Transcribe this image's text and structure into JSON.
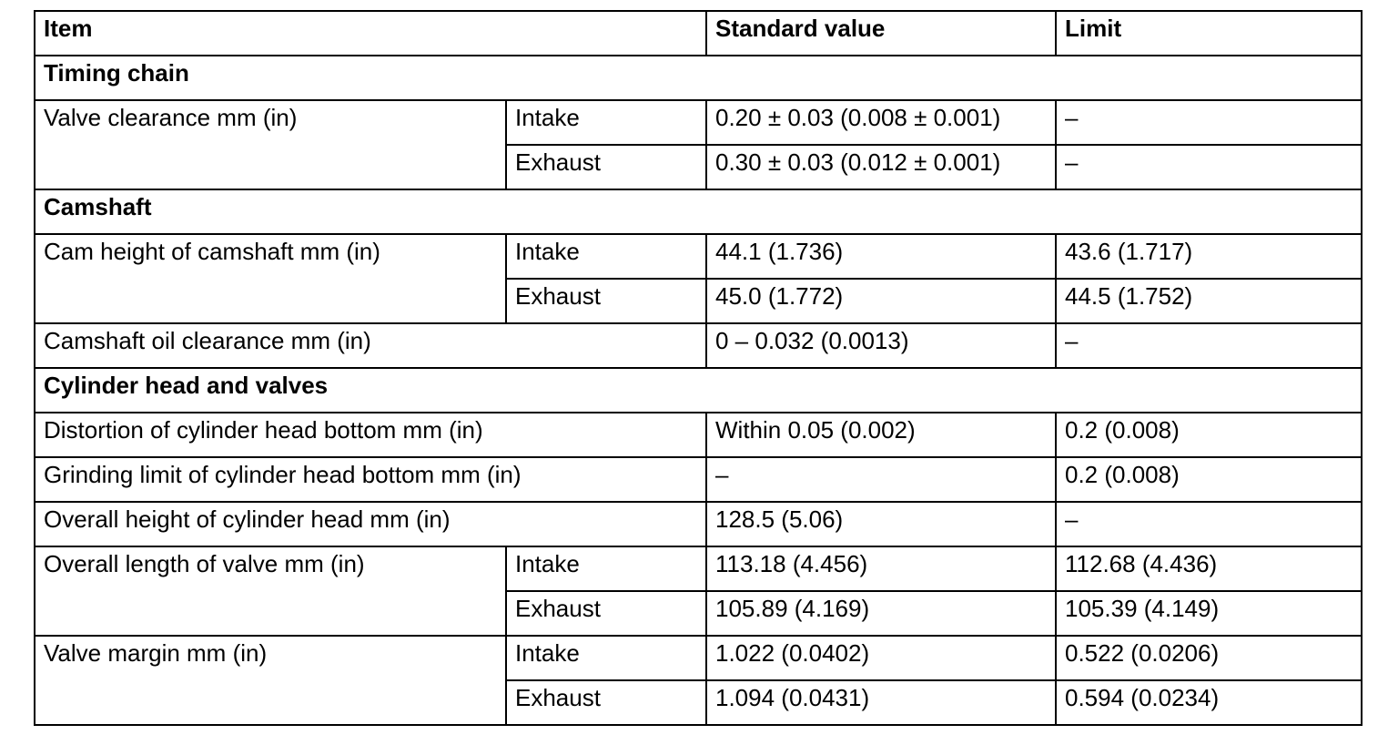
{
  "table": {
    "header": [
      "Item",
      "Standard value",
      "Limit"
    ],
    "sections": [
      {
        "title": "Timing chain",
        "items": [
          {
            "label": "Valve clearance mm (in)",
            "variants": [
              {
                "name": "Intake",
                "standard": "0.20 ± 0.03 (0.008 ± 0.001)",
                "limit": "–"
              },
              {
                "name": "Exhaust",
                "standard": "0.30 ± 0.03 (0.012 ± 0.001)",
                "limit": "–"
              }
            ]
          }
        ]
      },
      {
        "title": "Camshaft",
        "items": [
          {
            "label": "Cam height of camshaft mm (in)",
            "variants": [
              {
                "name": "Intake",
                "standard": "44.1 (1.736)",
                "limit": "43.6 (1.717)"
              },
              {
                "name": "Exhaust",
                "standard": "45.0 (1.772)",
                "limit": "44.5 (1.752)"
              }
            ]
          },
          {
            "label": "Camshaft oil clearance mm (in)",
            "standard": "0 – 0.032 (0.0013)",
            "limit": "–"
          }
        ]
      },
      {
        "title": "Cylinder head and valves",
        "items": [
          {
            "label": "Distortion of cylinder head bottom mm (in)",
            "standard": "Within 0.05 (0.002)",
            "limit": "0.2 (0.008)"
          },
          {
            "label": "Grinding limit of cylinder head bottom mm (in)",
            "standard": "–",
            "limit": "0.2 (0.008)"
          },
          {
            "label": "Overall height of cylinder head mm (in)",
            "standard": "128.5 (5.06)",
            "limit": "–"
          },
          {
            "label": "Overall length of valve mm (in)",
            "variants": [
              {
                "name": "Intake",
                "standard": "113.18 (4.456)",
                "limit": "112.68 (4.436)"
              },
              {
                "name": "Exhaust",
                "standard": "105.89 (4.169)",
                "limit": "105.39 (4.149)"
              }
            ]
          },
          {
            "label": "Valve margin mm (in)",
            "variants": [
              {
                "name": "Intake",
                "standard": "1.022 (0.0402)",
                "limit": "0.522 (0.0206)"
              },
              {
                "name": "Exhaust",
                "standard": "1.094 (0.0431)",
                "limit": "0.594 (0.0234)"
              }
            ]
          }
        ]
      }
    ]
  }
}
